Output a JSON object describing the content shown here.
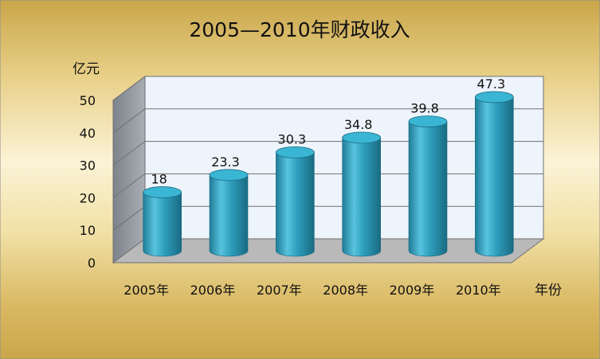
{
  "chart_data": {
    "type": "bar",
    "title": "2005—2010年财政收入",
    "ylabel": "亿元",
    "xlabel": "年份",
    "categories": [
      "2005年",
      "2006年",
      "2007年",
      "2008年",
      "2009年",
      "2010年"
    ],
    "values": [
      18,
      23.3,
      30.3,
      34.8,
      39.8,
      47.3
    ],
    "data_labels": [
      "18",
      "23.3",
      "30.3",
      "34.8",
      "39.8",
      "47.3"
    ],
    "yticks": [
      "0",
      "10",
      "20",
      "30",
      "40",
      "50"
    ],
    "ylim": [
      0,
      50
    ],
    "grid": true,
    "legend": "none",
    "colors": {
      "bar": "#2e9fbe",
      "bar_light": "#7fd3e8",
      "bar_dark": "#1a6f88",
      "bar_top": "#3ab6d4",
      "wall": "#eef4fb",
      "side_wall": "#9aa0a6",
      "floor": "#b9b9b9",
      "background_gold": "#e8cd78",
      "background_light": "#f7eccb",
      "text": "#111111"
    }
  }
}
